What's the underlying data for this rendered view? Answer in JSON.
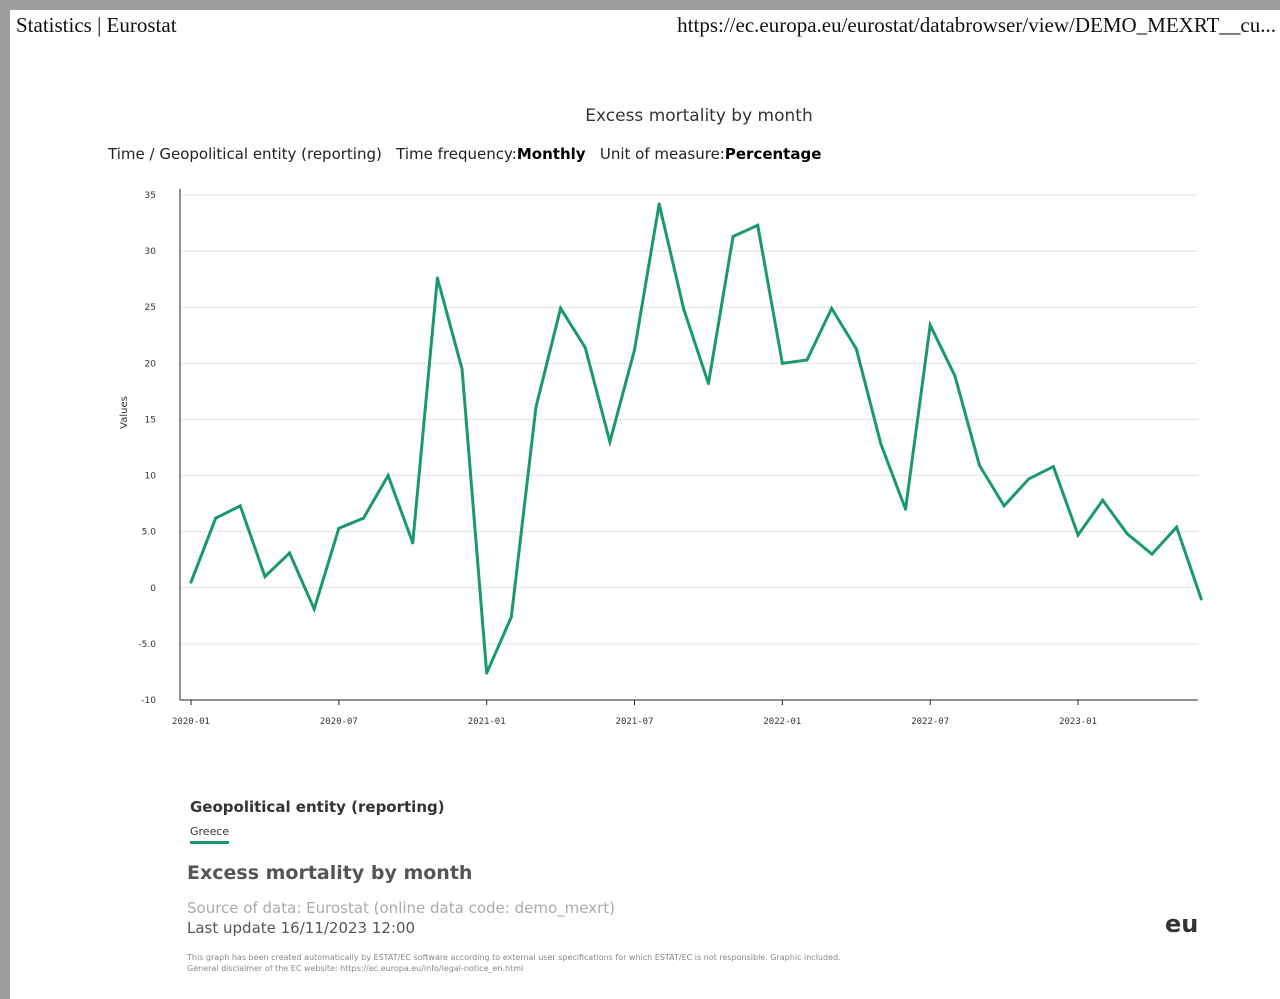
{
  "header": {
    "left": "Statistics | Eurostat",
    "right": "https://ec.europa.eu/eurostat/databrowser/view/DEMO_MEXRT__cu..."
  },
  "dims": {
    "time": "Time",
    "sep": "/",
    "geo": "Geopolitical entity (reporting)",
    "freq_label": "Time frequency:",
    "freq_value": "Monthly",
    "unit_label": "Unit of measure:",
    "unit_value": "Percentage"
  },
  "legend": {
    "title": "Geopolitical entity (reporting)",
    "items": [
      "Greece"
    ]
  },
  "footer": {
    "title": "Excess mortality by month",
    "source": "Source of data: Eurostat (online data code: demo_mexrt)",
    "update": "Last update 16/11/2023 12:00",
    "disclaimer1": "This graph has been created automatically by ESTAT/EC software according to external user specifications for which ESTAT/EC is not responsible. Graphic included.",
    "disclaimer2": "General disclaimer of the EC website: https://ec.europa.eu/info/legal-notice_en.html",
    "logo": "eu"
  },
  "colors": {
    "series": "#1a9a6b"
  },
  "chart_data": {
    "type": "line",
    "title": "Excess mortality by month",
    "xlabel": "",
    "ylabel": "Values",
    "ylim": [
      -10,
      35
    ],
    "yticks": [
      35,
      30,
      25,
      20,
      15,
      10,
      5.0,
      0,
      -5.0,
      -10
    ],
    "ytick_labels": [
      "35",
      "30",
      "25",
      "20",
      "15",
      "10",
      "5.0",
      "0",
      "-5.0",
      "-10"
    ],
    "xticks": [
      "2020-01",
      "2020-07",
      "2021-01",
      "2021-07",
      "2022-01",
      "2022-07",
      "2023-01"
    ],
    "x": [
      "2020-01",
      "2020-02",
      "2020-03",
      "2020-04",
      "2020-05",
      "2020-06",
      "2020-07",
      "2020-08",
      "2020-09",
      "2020-10",
      "2020-11",
      "2020-12",
      "2021-01",
      "2021-02",
      "2021-03",
      "2021-04",
      "2021-05",
      "2021-06",
      "2021-07",
      "2021-08",
      "2021-09",
      "2021-10",
      "2021-11",
      "2021-12",
      "2022-01",
      "2022-02",
      "2022-03",
      "2022-04",
      "2022-05",
      "2022-06",
      "2022-07",
      "2022-08",
      "2022-09",
      "2022-10",
      "2022-11",
      "2022-12",
      "2023-01",
      "2023-02",
      "2023-03",
      "2023-04",
      "2023-05",
      "2023-06"
    ],
    "grid": true,
    "series": [
      {
        "name": "Greece",
        "values": [
          0.5,
          6.2,
          7.3,
          1.0,
          3.1,
          -1.9,
          5.3,
          6.2,
          10.0,
          4.0,
          27.6,
          19.5,
          -7.6,
          -2.6,
          16.1,
          24.9,
          21.4,
          13.0,
          21.2,
          34.2,
          24.8,
          18.2,
          31.3,
          32.3,
          20.0,
          20.3,
          24.9,
          21.3,
          12.8,
          7.0,
          23.4,
          18.9,
          10.9,
          7.3,
          9.7,
          10.8,
          4.7,
          7.8,
          4.8,
          3.0,
          5.4,
          -1.0
        ]
      }
    ]
  }
}
